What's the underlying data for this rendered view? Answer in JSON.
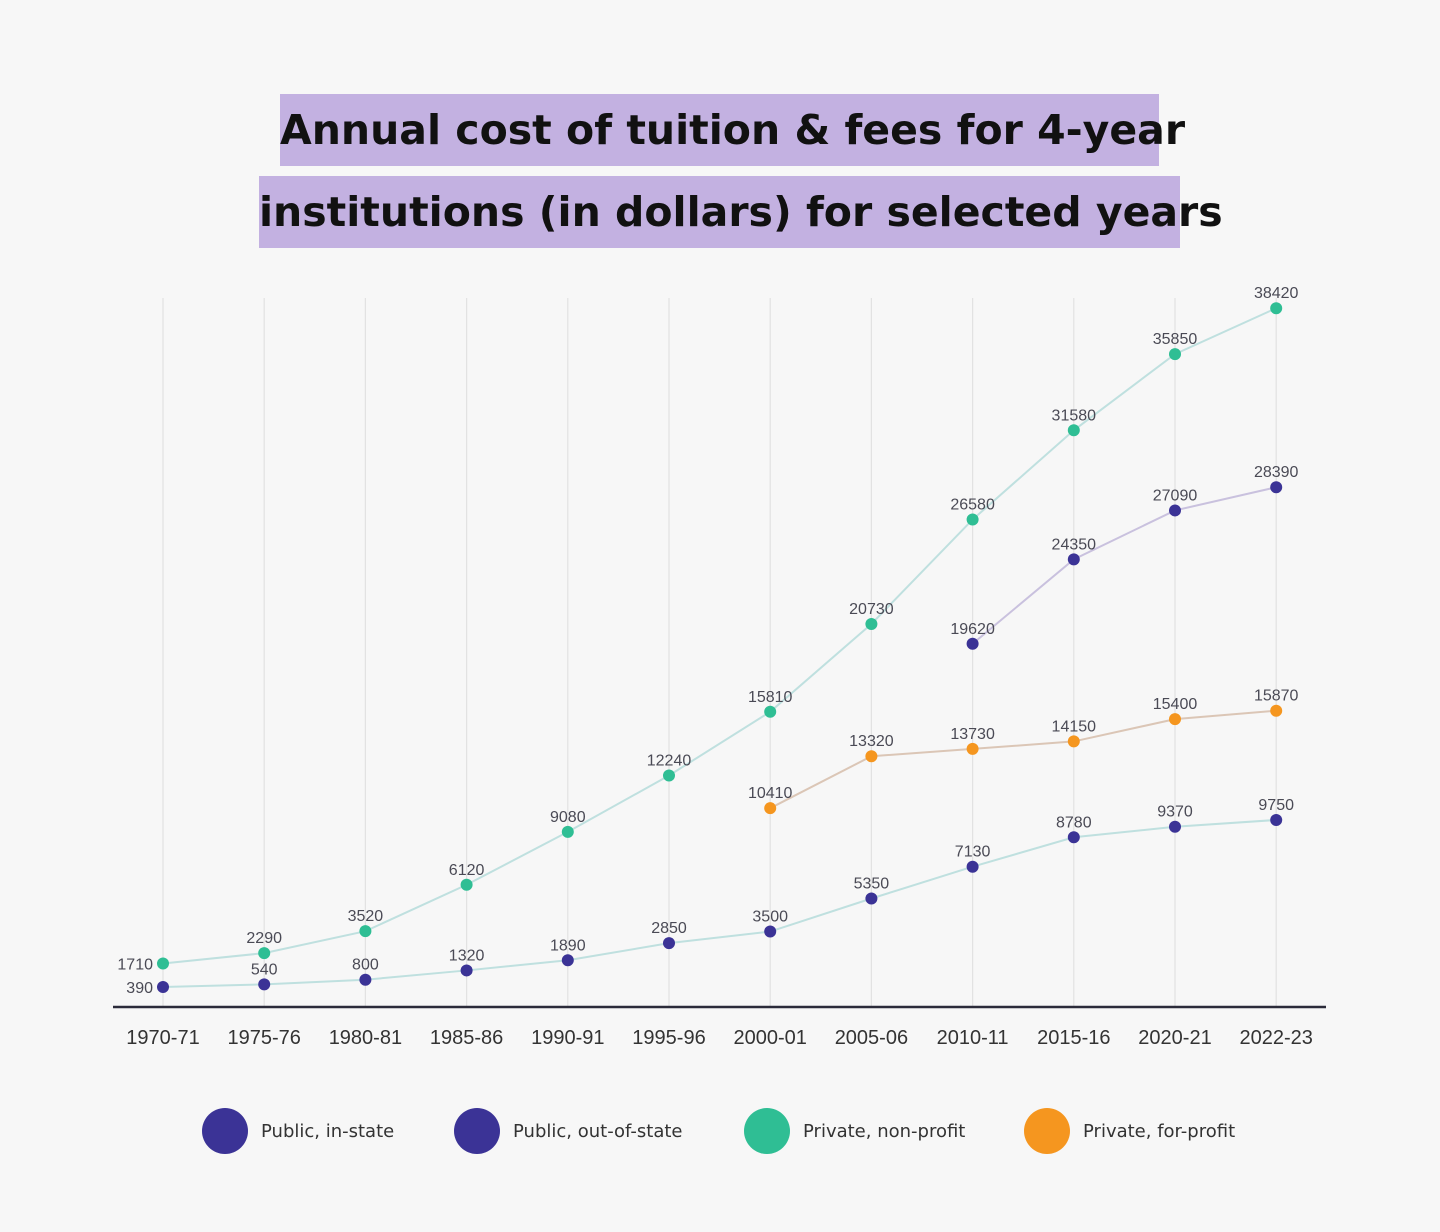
{
  "chart_data": {
    "type": "line",
    "title_lines": [
      "Annual cost of tuition & fees for 4-year",
      "institutions (in dollars) for selected years"
    ],
    "xlabel": "",
    "ylabel": "",
    "categories": [
      "1970-71",
      "1975-76",
      "1980-81",
      "1985-86",
      "1990-91",
      "1995-96",
      "2000-01",
      "2005-06",
      "2010-11",
      "2015-16",
      "2020-21",
      "2022-23"
    ],
    "ylim": [
      0,
      40000
    ],
    "grid": "vertical",
    "legend_placement": "bottom",
    "series": [
      {
        "name": "Public, in-state",
        "color": "#3b3396",
        "line_color": "#bfe0df",
        "values": [
          390,
          540,
          800,
          1320,
          1890,
          2850,
          3500,
          5350,
          7130,
          8780,
          9370,
          9750
        ]
      },
      {
        "name": "Public, out-of-state",
        "color": "#3b3396",
        "line_color": "#c9c1de",
        "values": [
          null,
          null,
          null,
          null,
          null,
          null,
          null,
          null,
          19620,
          24350,
          27090,
          28390
        ]
      },
      {
        "name": "Private, non-profit",
        "color": "#2fbe94",
        "line_color": "#bfe0df",
        "values": [
          1710,
          2290,
          3520,
          6120,
          9080,
          12240,
          15810,
          20730,
          26580,
          31580,
          35850,
          38420
        ]
      },
      {
        "name": "Private, for-profit",
        "color": "#f5961f",
        "line_color": "#dbc6b6",
        "values": [
          null,
          null,
          null,
          null,
          null,
          null,
          10410,
          13320,
          13730,
          14150,
          15400,
          15870
        ]
      }
    ]
  }
}
